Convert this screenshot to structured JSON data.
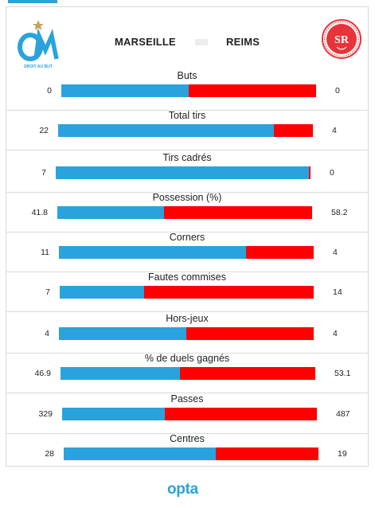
{
  "colors": {
    "home": "#2aa3dc",
    "away": "#ff0000"
  },
  "match": {
    "home_team": "MARSEILLE",
    "away_team": "REIMS",
    "home_logo_text": "DROIT AU BUT",
    "away_logo_text": "SR"
  },
  "brand": "opta",
  "chart_data": {
    "type": "bar",
    "orientation": "horizontal-stacked",
    "series": [
      {
        "name": "MARSEILLE"
      },
      {
        "name": "REIMS"
      }
    ],
    "stats": [
      {
        "label": "Buts",
        "home": 0,
        "away": 0,
        "home_display": "0",
        "away_display": "0"
      },
      {
        "label": "Total tirs",
        "home": 22,
        "away": 4,
        "home_display": "22",
        "away_display": "4"
      },
      {
        "label": "Tirs cadrés",
        "home": 7,
        "away": 0,
        "home_display": "7",
        "away_display": "0"
      },
      {
        "label": "Possession (%)",
        "home": 41.8,
        "away": 58.2,
        "home_display": "41.8",
        "away_display": "58.2"
      },
      {
        "label": "Corners",
        "home": 11,
        "away": 4,
        "home_display": "11",
        "away_display": "4"
      },
      {
        "label": "Fautes commises",
        "home": 7,
        "away": 14,
        "home_display": "7",
        "away_display": "14"
      },
      {
        "label": "Hors-jeux",
        "home": 4,
        "away": 4,
        "home_display": "4",
        "away_display": "4"
      },
      {
        "label": "% de duels gagnés",
        "home": 46.9,
        "away": 53.1,
        "home_display": "46.9",
        "away_display": "53.1"
      },
      {
        "label": "Passes",
        "home": 329,
        "away": 487,
        "home_display": "329",
        "away_display": "487"
      },
      {
        "label": "Centres",
        "home": 28,
        "away": 19,
        "home_display": "28",
        "away_display": "19"
      }
    ]
  }
}
